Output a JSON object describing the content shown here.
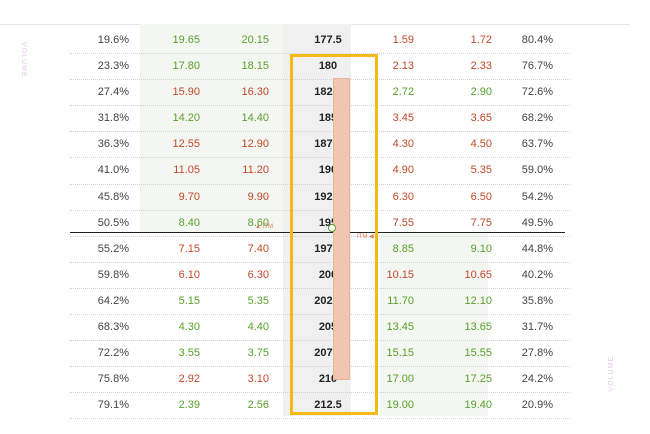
{
  "volume_label": "VOLUME",
  "itm_label": "ITM",
  "rows": [
    {
      "call_prob": "19.6%",
      "call_bid": "19.65",
      "call_ask": "20.15",
      "strike": "177.5",
      "put_bid": "1.59",
      "put_ask": "1.72",
      "put_prob": "80.4%",
      "call_bid_color": "pos",
      "call_ask_color": "pos",
      "put_bid_color": "neg",
      "put_ask_color": "neg"
    },
    {
      "call_prob": "23.3%",
      "call_bid": "17.80",
      "call_ask": "18.15",
      "strike": "180",
      "put_bid": "2.13",
      "put_ask": "2.33",
      "put_prob": "76.7%",
      "call_bid_color": "pos",
      "call_ask_color": "pos",
      "put_bid_color": "neg",
      "put_ask_color": "neg"
    },
    {
      "call_prob": "27.4%",
      "call_bid": "15.90",
      "call_ask": "16.30",
      "strike": "182.5",
      "put_bid": "2.72",
      "put_ask": "2.90",
      "put_prob": "72.6%",
      "call_bid_color": "neg",
      "call_ask_color": "neg",
      "put_bid_color": "pos",
      "put_ask_color": "pos"
    },
    {
      "call_prob": "31.8%",
      "call_bid": "14.20",
      "call_ask": "14.40",
      "strike": "185",
      "put_bid": "3.45",
      "put_ask": "3.65",
      "put_prob": "68.2%",
      "call_bid_color": "pos",
      "call_ask_color": "pos",
      "put_bid_color": "neg",
      "put_ask_color": "neg"
    },
    {
      "call_prob": "36.3%",
      "call_bid": "12.55",
      "call_ask": "12.90",
      "strike": "187.5",
      "put_bid": "4.30",
      "put_ask": "4.50",
      "put_prob": "63.7%",
      "call_bid_color": "neg",
      "call_ask_color": "neg",
      "put_bid_color": "neg",
      "put_ask_color": "neg"
    },
    {
      "call_prob": "41.0%",
      "call_bid": "11.05",
      "call_ask": "11.20",
      "strike": "190",
      "put_bid": "4.90",
      "put_ask": "5.35",
      "put_prob": "59.0%",
      "call_bid_color": "neg",
      "call_ask_color": "neg",
      "put_bid_color": "neg",
      "put_ask_color": "neg"
    },
    {
      "call_prob": "45.8%",
      "call_bid": "9.70",
      "call_ask": "9.90",
      "strike": "192.5",
      "put_bid": "6.30",
      "put_ask": "6.50",
      "put_prob": "54.2%",
      "call_bid_color": "neg",
      "call_ask_color": "neg",
      "put_bid_color": "neg",
      "put_ask_color": "neg"
    },
    {
      "call_prob": "50.5%",
      "call_bid": "8.40",
      "call_ask": "8.60",
      "strike": "195",
      "put_bid": "7.55",
      "put_ask": "7.75",
      "put_prob": "49.5%",
      "call_bid_color": "pos",
      "call_ask_color": "pos",
      "put_bid_color": "neg",
      "put_ask_color": "neg"
    },
    {
      "call_prob": "55.2%",
      "call_bid": "7.15",
      "call_ask": "7.40",
      "strike": "197.5",
      "put_bid": "8.85",
      "put_ask": "9.10",
      "put_prob": "44.8%",
      "call_bid_color": "neg",
      "call_ask_color": "neg",
      "put_bid_color": "pos",
      "put_ask_color": "pos"
    },
    {
      "call_prob": "59.8%",
      "call_bid": "6.10",
      "call_ask": "6.30",
      "strike": "200",
      "put_bid": "10.15",
      "put_ask": "10.65",
      "put_prob": "40.2%",
      "call_bid_color": "neg",
      "call_ask_color": "neg",
      "put_bid_color": "neg",
      "put_ask_color": "neg"
    },
    {
      "call_prob": "64.2%",
      "call_bid": "5.15",
      "call_ask": "5.35",
      "strike": "202.5",
      "put_bid": "11.70",
      "put_ask": "12.10",
      "put_prob": "35.8%",
      "call_bid_color": "pos",
      "call_ask_color": "pos",
      "put_bid_color": "pos",
      "put_ask_color": "pos"
    },
    {
      "call_prob": "68.3%",
      "call_bid": "4.30",
      "call_ask": "4.40",
      "strike": "205",
      "put_bid": "13.45",
      "put_ask": "13.65",
      "put_prob": "31.7%",
      "call_bid_color": "pos",
      "call_ask_color": "pos",
      "put_bid_color": "pos",
      "put_ask_color": "pos"
    },
    {
      "call_prob": "72.2%",
      "call_bid": "3.55",
      "call_ask": "3.75",
      "strike": "207.5",
      "put_bid": "15.15",
      "put_ask": "15.55",
      "put_prob": "27.8%",
      "call_bid_color": "pos",
      "call_ask_color": "pos",
      "put_bid_color": "pos",
      "put_ask_color": "pos"
    },
    {
      "call_prob": "75.8%",
      "call_bid": "2.92",
      "call_ask": "3.10",
      "strike": "210",
      "put_bid": "17.00",
      "put_ask": "17.25",
      "put_prob": "24.2%",
      "call_bid_color": "neg",
      "call_ask_color": "neg",
      "put_bid_color": "pos",
      "put_ask_color": "pos"
    },
    {
      "call_prob": "79.1%",
      "call_bid": "2.39",
      "call_ask": "2.56",
      "strike": "212.5",
      "put_bid": "19.00",
      "put_ask": "19.40",
      "put_prob": "20.9%",
      "call_bid_color": "pos",
      "call_ask_color": "pos",
      "put_bid_color": "pos",
      "put_ask_color": "pos"
    }
  ],
  "colors": {
    "positive": "#5aa02c",
    "negative": "#c0492b",
    "highlight": "#f5b915",
    "price_bar": "#f1c5b0"
  }
}
